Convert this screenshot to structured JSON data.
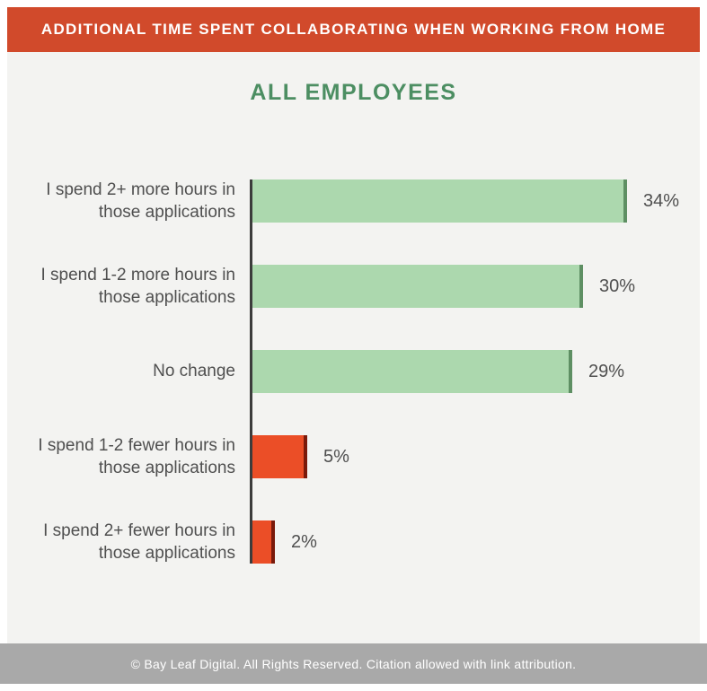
{
  "header": {
    "title": "ADDITIONAL TIME SPENT COLLABORATING WHEN WORKING FROM HOME"
  },
  "footer": {
    "text": "© Bay Leaf Digital. All Rights Reserved. Citation allowed with link attribution."
  },
  "colors": {
    "header_bg": "#D14A2B",
    "background": "#F3F3F1",
    "subtitle": "#4C8E62",
    "axis": "#3C3C3C",
    "label_text": "#4F4F4F",
    "value_text": "#4F4F4F",
    "footer_bg": "#A9A9A9",
    "bar_green": "#ACD8AE",
    "bar_green_cap": "#5E8F63",
    "bar_red": "#EB4E27",
    "bar_red_cap": "#7A1A0B"
  },
  "chart_data": {
    "type": "bar",
    "orientation": "horizontal",
    "title": "ALL EMPLOYEES",
    "categories": [
      "I spend 2+ more hours in\nthose applications",
      "I spend 1-2 more hours in\nthose applications",
      "No change",
      "I spend 1-2 fewer hours in\nthose applications",
      "I spend 2+ fewer hours in\nthose applications"
    ],
    "values": [
      34,
      30,
      29,
      5,
      2
    ],
    "value_labels": [
      "34%",
      "30%",
      "29%",
      "5%",
      "2%"
    ],
    "bar_colors": [
      "green",
      "green",
      "green",
      "red",
      "red"
    ],
    "xlim": [
      0,
      34
    ],
    "grid": false,
    "legend": false
  }
}
